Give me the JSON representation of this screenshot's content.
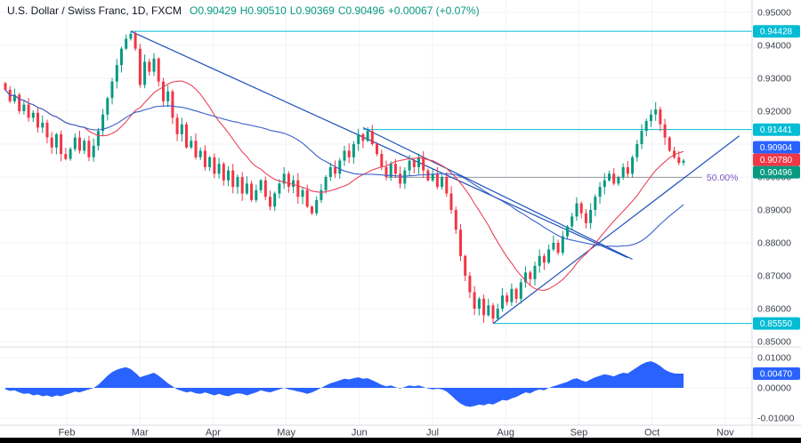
{
  "header": {
    "symbol": "U.S. Dollar / Swiss Franc, 1D, FXCM",
    "open": "O0.90429",
    "high": "H0.90510",
    "low": "L0.90369",
    "close": "C0.90496",
    "change": "+0.00067 (+0.07%)"
  },
  "colors": {
    "up": "#089981",
    "down": "#f23645",
    "ma_fast": "#e8445a",
    "ma_slow": "#3a62c9",
    "trend": "#1e53ba",
    "cyan": "#00bcd4",
    "blue": "#2962ff",
    "red": "#f23645",
    "green": "#089981",
    "osc": "#2962ff",
    "grid": "#f0f3fa",
    "fib_line": "#9598a1",
    "fib_label": "#7e57c2",
    "axis_text": "#3a3f4a",
    "ohlc_text": "#089981",
    "title_text": "#131722"
  },
  "axis": {
    "price_ticks": [
      "0.95000",
      "0.94000",
      "0.93000",
      "0.92000",
      "0.91000",
      "0.90000",
      "0.89000",
      "0.88000",
      "0.87000",
      "0.86000",
      "0.85000"
    ],
    "osc_ticks": [
      "0.01000",
      "0.00000",
      "-0.01000"
    ],
    "months": [
      "Feb",
      "Mar",
      "Apr",
      "May",
      "Jun",
      "Jul",
      "Aug",
      "Sep",
      "Oct",
      "Nov"
    ]
  },
  "price_labels": [
    {
      "value": "0.94428",
      "price": 0.94428,
      "color_key": "cyan"
    },
    {
      "value": "0.91441",
      "price": 0.91441,
      "color_key": "cyan"
    },
    {
      "value": "0.90904",
      "price": 0.90904,
      "color_key": "blue"
    },
    {
      "value": "0.90780",
      "price": 0.9078,
      "color_key": "red"
    },
    {
      "value": "0.90496",
      "price": 0.90496,
      "color_key": "green"
    },
    {
      "value": "0.85550",
      "price": 0.8555,
      "color_key": "cyan"
    }
  ],
  "osc_label": {
    "value": "0.00470",
    "v": 0.0047
  },
  "chart_data": {
    "type": "candlestick",
    "title": "U.S. Dollar / Swiss Franc",
    "timeframe": "1D",
    "exchange": "FXCM",
    "last": {
      "open": 0.90429,
      "high": 0.9051,
      "low": 0.90369,
      "close": 0.90496,
      "change": 0.00067,
      "change_pct": 0.07
    },
    "ylim": [
      0.848,
      0.954
    ],
    "x_months": [
      "Feb",
      "Mar",
      "Apr",
      "May",
      "Jun",
      "Jul",
      "Aug",
      "Sep",
      "Oct",
      "Nov"
    ],
    "closes": [
      0.9265,
      0.923,
      0.925,
      0.92,
      0.922,
      0.918,
      0.9195,
      0.915,
      0.9165,
      0.912,
      0.909,
      0.913,
      0.907,
      0.9055,
      0.9085,
      0.912,
      0.908,
      0.911,
      0.906,
      0.9095,
      0.914,
      0.919,
      0.924,
      0.929,
      0.934,
      0.939,
      0.942,
      0.9435,
      0.939,
      0.928,
      0.935,
      0.932,
      0.936,
      0.929,
      0.923,
      0.926,
      0.918,
      0.913,
      0.916,
      0.909,
      0.911,
      0.906,
      0.908,
      0.903,
      0.906,
      0.901,
      0.904,
      0.899,
      0.902,
      0.897,
      0.9,
      0.895,
      0.898,
      0.893,
      0.896,
      0.899,
      0.894,
      0.891,
      0.895,
      0.898,
      0.901,
      0.897,
      0.899,
      0.894,
      0.896,
      0.891,
      0.889,
      0.893,
      0.896,
      0.9,
      0.903,
      0.901,
      0.905,
      0.908,
      0.906,
      0.91,
      0.913,
      0.911,
      0.914,
      0.91,
      0.907,
      0.903,
      0.9,
      0.904,
      0.901,
      0.898,
      0.902,
      0.905,
      0.903,
      0.906,
      0.902,
      0.899,
      0.901,
      0.897,
      0.9,
      0.895,
      0.89,
      0.884,
      0.876,
      0.87,
      0.865,
      0.86,
      0.863,
      0.858,
      0.861,
      0.857,
      0.86,
      0.864,
      0.862,
      0.866,
      0.863,
      0.868,
      0.871,
      0.869,
      0.873,
      0.876,
      0.874,
      0.878,
      0.88,
      0.877,
      0.882,
      0.885,
      0.888,
      0.892,
      0.889,
      0.886,
      0.89,
      0.894,
      0.897,
      0.899,
      0.901,
      0.898,
      0.9,
      0.903,
      0.901,
      0.906,
      0.91,
      0.914,
      0.917,
      0.919,
      0.9205,
      0.916,
      0.912,
      0.908,
      0.906,
      0.9043,
      0.90496
    ],
    "key_high": [
      27,
      0.94428
    ],
    "key_low": [
      105,
      0.8555
    ],
    "moving_averages": [
      {
        "name": "fast",
        "period": 18,
        "color_key": "ma_fast"
      },
      {
        "name": "slow",
        "period": 40,
        "color_key": "ma_slow"
      }
    ],
    "indicator": {
      "name": "momentum",
      "last_value": 0.0047,
      "ylim": [
        -0.012,
        0.012
      ],
      "values": [
        -0.0005,
        -0.001,
        -0.0008,
        -0.0015,
        -0.002,
        -0.0018,
        -0.0025,
        -0.0022,
        -0.0028,
        -0.0025,
        -0.003,
        -0.0025,
        -0.0028,
        -0.0022,
        -0.0018,
        -0.0012,
        -0.0015,
        -0.001,
        -0.0005,
        0.0,
        0.001,
        0.0025,
        0.004,
        0.0052,
        0.006,
        0.0065,
        0.0068,
        0.0062,
        0.005,
        0.0035,
        0.004,
        0.0045,
        0.005,
        0.004,
        0.0028,
        0.0015,
        0.0005,
        -0.0005,
        -0.001,
        -0.0015,
        -0.0012,
        -0.0018,
        -0.002,
        -0.0015,
        -0.002,
        -0.0025,
        -0.002,
        -0.0025,
        -0.0028,
        -0.0022,
        -0.0018,
        -0.002,
        -0.0025,
        -0.002,
        -0.0015,
        -0.0008,
        -0.0012,
        -0.0015,
        -0.001,
        -0.0005,
        0.0,
        -0.0005,
        -0.0008,
        -0.0012,
        -0.0015,
        -0.002,
        -0.0015,
        -0.0008,
        0.0,
        0.0008,
        0.0015,
        0.002,
        0.0025,
        0.003,
        0.0028,
        0.0032,
        0.0035,
        0.003,
        0.0032,
        0.0025,
        0.0018,
        0.001,
        0.0005,
        0.0008,
        0.0002,
        -0.0002,
        0.0003,
        0.0008,
        0.0005,
        0.0008,
        0.0003,
        -0.0002,
        -0.0005,
        -0.0003,
        -0.0005,
        -0.0012,
        -0.0025,
        -0.004,
        -0.0052,
        -0.006,
        -0.0063,
        -0.006,
        -0.0055,
        -0.0058,
        -0.0052,
        -0.0055,
        -0.0048,
        -0.004,
        -0.0042,
        -0.0035,
        -0.003,
        -0.0022,
        -0.0015,
        -0.0018,
        -0.001,
        -0.0005,
        -0.0008,
        0.0,
        0.0005,
        0.001,
        0.0015,
        0.002,
        0.0028,
        0.0032,
        0.0025,
        0.002,
        0.0028,
        0.0035,
        0.004,
        0.0045,
        0.0042,
        0.0038,
        0.0045,
        0.005,
        0.0048,
        0.0058,
        0.0068,
        0.0078,
        0.0085,
        0.0088,
        0.0082,
        0.0072,
        0.006,
        0.0052,
        0.0048,
        0.0047,
        0.0047
      ]
    },
    "drawings": {
      "trendlines": [
        {
          "from": [
            27,
            0.94428
          ],
          "to": [
            134,
            0.8755
          ]
        },
        {
          "from": [
            77,
            0.915
          ],
          "to": [
            135,
            0.875
          ]
        },
        {
          "from": [
            105,
            0.8555
          ],
          "to": [
            158,
            0.9125
          ]
        }
      ],
      "hlines": [
        {
          "price": 0.94428,
          "from": 27
        },
        {
          "price": 0.91441,
          "from": 77
        },
        {
          "price": 0.8555,
          "from": 105
        }
      ],
      "fib": {
        "price": 0.8999,
        "from": 82,
        "to": 150,
        "label": "50.00%"
      }
    }
  }
}
